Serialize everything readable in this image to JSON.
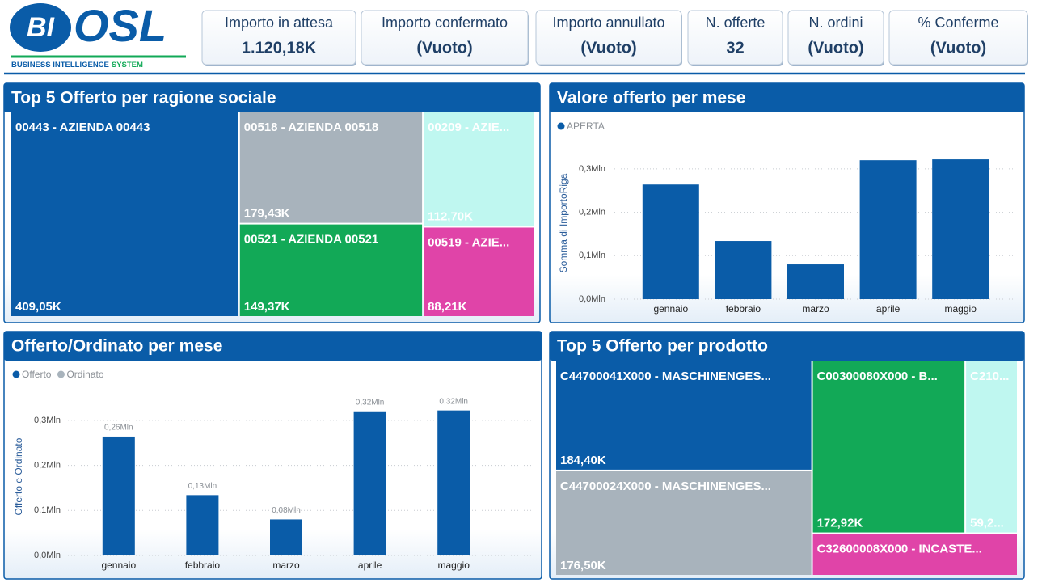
{
  "logo": {
    "mark": "BI",
    "name": "OSL",
    "tagline_1": "BUSINESS INTELLIGENCE",
    "tagline_2": "SYSTEM"
  },
  "kpis": [
    {
      "label": "Importo in attesa",
      "value": "1.120,18K"
    },
    {
      "label": "Importo confermato",
      "value": "(Vuoto)"
    },
    {
      "label": "Importo annullato",
      "value": "(Vuoto)"
    },
    {
      "label": "N. offerte",
      "value": 32
    },
    {
      "label": "N. ordini",
      "value": "(Vuoto)"
    },
    {
      "label": "% Conferme",
      "value": "(Vuoto)"
    }
  ],
  "chart_data": [
    {
      "type": "treemap",
      "title": "Top 5 Offerto per ragione sociale",
      "labels": [
        "00443 - AZIENDA 00443",
        "00518 - AZIENDA 00518",
        "00521 - AZIENDA 00521",
        "00209 - AZIE...",
        "00519 - AZIE..."
      ],
      "values": [
        409.05,
        179.43,
        149.37,
        112.7,
        88.21
      ],
      "value_labels": [
        "409,05K",
        "179,43K",
        "149,37K",
        "112,70K",
        "88,21K"
      ],
      "colors": [
        "#0a5ca8",
        "#a8b3bc",
        "#12a957",
        "#bff7f0",
        "#e044a8"
      ]
    },
    {
      "type": "bar",
      "title": "Valore offerto per mese",
      "ylabel": "Somma di ImportoRiga",
      "categories": [
        "gennaio",
        "febbraio",
        "marzo",
        "aprile",
        "maggio"
      ],
      "series": [
        {
          "name": "APERTA",
          "color": "#0a5ca8",
          "values": [
            0.264,
            0.134,
            0.08,
            0.32,
            0.322
          ]
        }
      ],
      "ylim": [
        0,
        0.35
      ],
      "yticks": [
        {
          "value": 0,
          "label": "0,0Mln"
        },
        {
          "value": 0.1,
          "label": "0,1Mln"
        },
        {
          "value": 0.2,
          "label": "0,2Mln"
        },
        {
          "value": 0.3,
          "label": "0,3Mln"
        }
      ],
      "grid": true
    },
    {
      "type": "bar",
      "title": "Offerto/Ordinato per mese",
      "ylabel": "Offerto e Ordinato",
      "categories": [
        "gennaio",
        "febbraio",
        "marzo",
        "aprile",
        "maggio"
      ],
      "series": [
        {
          "name": "Offerto",
          "color": "#0a5ca8",
          "values": [
            0.264,
            0.134,
            0.08,
            0.32,
            0.322
          ],
          "value_labels": [
            "0,26Mln",
            "0,13Mln",
            "0,08Mln",
            "0,32Mln",
            "0,32Mln"
          ]
        },
        {
          "name": "Ordinato",
          "color": "#a8b3bc",
          "values": [
            null,
            null,
            null,
            null,
            null
          ]
        }
      ],
      "ylim": [
        0,
        0.35
      ],
      "yticks": [
        {
          "value": 0,
          "label": "0,0Mln"
        },
        {
          "value": 0.1,
          "label": "0,1Mln"
        },
        {
          "value": 0.2,
          "label": "0,2Mln"
        },
        {
          "value": 0.3,
          "label": "0,3Mln"
        }
      ],
      "grid": true
    },
    {
      "type": "treemap",
      "title": "Top 5 Offerto per prodotto",
      "labels": [
        "C44700041X000 - MASCHINENGES...",
        "C44700024X000 - MASCHINENGES...",
        "C00300080X000 - B...",
        "C210...",
        "C32600008X000 - INCASTE..."
      ],
      "values": [
        184.4,
        176.5,
        172.92,
        59.2,
        57
      ],
      "value_labels": [
        "184,40K",
        "176,50K",
        "172,92K",
        "59,2...",
        null
      ],
      "colors": [
        "#0a5ca8",
        "#a8b3bc",
        "#12a957",
        "#bff7f0",
        "#e044a8"
      ]
    }
  ]
}
